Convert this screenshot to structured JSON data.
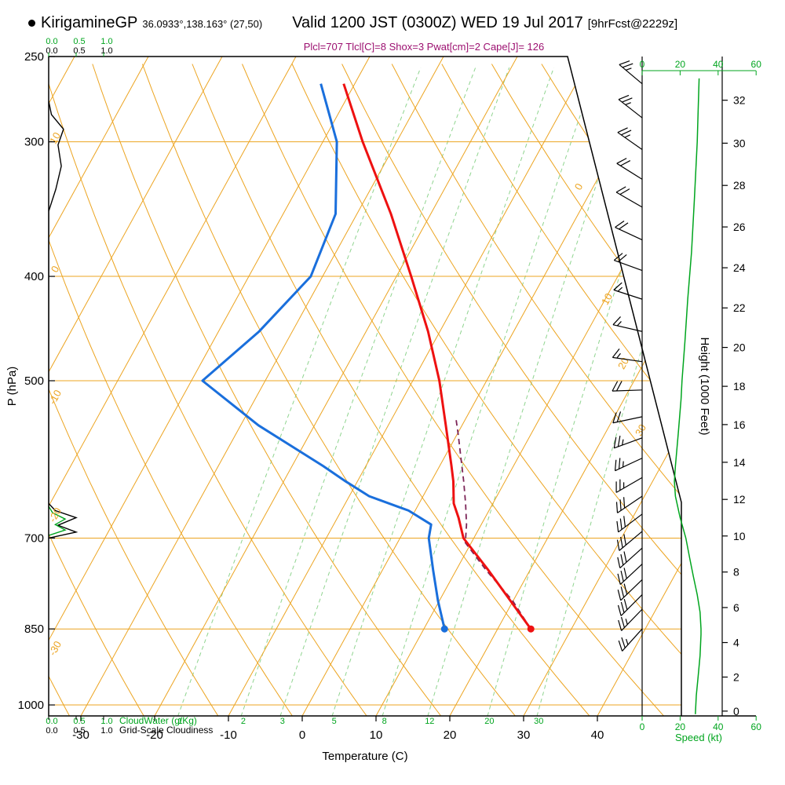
{
  "header": {
    "station": "KirigamineGP",
    "coords": "36.0933°,138.163° (27,50)",
    "valid": "Valid 1200 JST (0300Z) WED 19 Jul 2017",
    "fcst": "[9hrFcst@2229z]",
    "stats": "Plcl=707 Tlcl[C]=8 Shox=3 Pwat[cm]=2 Cape[J]= 126"
  },
  "axes": {
    "pressure_label": "P (hPa)",
    "pressure_ticks": [
      250,
      300,
      400,
      500,
      700,
      850,
      1000
    ],
    "temp_label": "Temperature (C)",
    "temp_ticks": [
      -30,
      -20,
      -10,
      0,
      10,
      20,
      30,
      40
    ],
    "height_label": "Height (1000 Feet)",
    "height_ticks": [
      0,
      2,
      4,
      6,
      8,
      10,
      12,
      14,
      16,
      18,
      20,
      22,
      24,
      26,
      28,
      30,
      32
    ],
    "speed_label": "Speed (kt)",
    "speed_ticks": [
      0,
      20,
      40,
      60
    ],
    "cloudwater_label": "CloudWater (g/Kg)",
    "cloudiness_label": "Grid-Scale Cloudiness",
    "cloud_scale_ticks": [
      "0.0",
      "0.5",
      "1.0"
    ]
  },
  "chart_data": {
    "type": "skewt-logp-sounding",
    "pressure_range_hpa": [
      250,
      1025
    ],
    "temp_axis_range_c": [
      -35,
      45
    ],
    "height_axis_range_kft": [
      0,
      33
    ],
    "speed_axis_range_kt": [
      0,
      60
    ],
    "isobars": [
      300,
      400,
      500,
      700,
      850,
      1000
    ],
    "mixing_ratio_lines": [
      1,
      2,
      3,
      5,
      8,
      12,
      20,
      30
    ],
    "adiabat_edge_labels": [
      10,
      0,
      -10,
      -20,
      -30
    ],
    "isotherm_edge_labels": [
      0,
      10,
      20,
      30
    ],
    "temperature_profile": [
      [
        850,
        24.5
      ],
      [
        800,
        19.6
      ],
      [
        750,
        14.4
      ],
      [
        700,
        8.6
      ],
      [
        670,
        6.4
      ],
      [
        650,
        4.7
      ],
      [
        620,
        3.0
      ],
      [
        600,
        1.6
      ],
      [
        550,
        -2.2
      ],
      [
        500,
        -6.4
      ],
      [
        450,
        -11.6
      ],
      [
        400,
        -18.0
      ],
      [
        350,
        -25.4
      ],
      [
        300,
        -34.6
      ],
      [
        265,
        -41.5
      ]
    ],
    "dewpoint_profile": [
      [
        850,
        12.8
      ],
      [
        800,
        9.8
      ],
      [
        750,
        6.9
      ],
      [
        700,
        3.9
      ],
      [
        680,
        3.2
      ],
      [
        660,
        -0.9
      ],
      [
        640,
        -7.3
      ],
      [
        620,
        -11.6
      ],
      [
        600,
        -15.8
      ],
      [
        550,
        -27.6
      ],
      [
        500,
        -38.5
      ],
      [
        450,
        -34.5
      ],
      [
        400,
        -31.6
      ],
      [
        350,
        -32.9
      ],
      [
        300,
        -38.1
      ],
      [
        265,
        -44.6
      ]
    ],
    "parcel_profile": [
      [
        850,
        24.5
      ],
      [
        800,
        19.9
      ],
      [
        750,
        14.1
      ],
      [
        707,
        9.2
      ],
      [
        680,
        8.0
      ],
      [
        650,
        6.3
      ],
      [
        620,
        4.4
      ],
      [
        590,
        2.3
      ],
      [
        560,
        0.1
      ],
      [
        540,
        -1.5
      ]
    ],
    "wind_barbs": [
      {
        "p": 265,
        "spd": 25,
        "dir": 310
      },
      {
        "p": 285,
        "spd": 25,
        "dir": 308
      },
      {
        "p": 305,
        "spd": 25,
        "dir": 305
      },
      {
        "p": 325,
        "spd": 22,
        "dir": 302
      },
      {
        "p": 345,
        "spd": 22,
        "dir": 300
      },
      {
        "p": 370,
        "spd": 20,
        "dir": 295
      },
      {
        "p": 395,
        "spd": 20,
        "dir": 290
      },
      {
        "p": 420,
        "spd": 18,
        "dir": 288
      },
      {
        "p": 450,
        "spd": 18,
        "dir": 283
      },
      {
        "p": 480,
        "spd": 18,
        "dir": 278
      },
      {
        "p": 510,
        "spd": 20,
        "dir": 268
      },
      {
        "p": 540,
        "spd": 22,
        "dir": 258
      },
      {
        "p": 565,
        "spd": 25,
        "dir": 250
      },
      {
        "p": 590,
        "spd": 27,
        "dir": 245
      },
      {
        "p": 615,
        "spd": 28,
        "dir": 240
      },
      {
        "p": 640,
        "spd": 30,
        "dir": 236
      },
      {
        "p": 665,
        "spd": 30,
        "dir": 233
      },
      {
        "p": 690,
        "spd": 30,
        "dir": 230
      },
      {
        "p": 715,
        "spd": 30,
        "dir": 228
      },
      {
        "p": 740,
        "spd": 30,
        "dir": 227
      },
      {
        "p": 765,
        "spd": 30,
        "dir": 226
      },
      {
        "p": 790,
        "spd": 30,
        "dir": 225
      },
      {
        "p": 815,
        "spd": 28,
        "dir": 224
      },
      {
        "p": 850,
        "spd": 28,
        "dir": 222
      }
    ],
    "speed_profile": [
      [
        1020,
        28
      ],
      [
        980,
        28.5
      ],
      [
        940,
        29.5
      ],
      [
        900,
        30.5
      ],
      [
        860,
        31
      ],
      [
        850,
        31
      ],
      [
        820,
        30.5
      ],
      [
        790,
        29
      ],
      [
        760,
        27
      ],
      [
        730,
        25
      ],
      [
        700,
        23
      ],
      [
        670,
        20
      ],
      [
        640,
        17.5
      ],
      [
        620,
        17
      ],
      [
        600,
        17.5
      ],
      [
        560,
        19
      ],
      [
        520,
        20.5
      ],
      [
        500,
        21
      ],
      [
        460,
        22.5
      ],
      [
        420,
        24
      ],
      [
        380,
        26
      ],
      [
        340,
        27.5
      ],
      [
        300,
        29
      ],
      [
        280,
        29.5
      ],
      [
        262,
        30
      ]
    ],
    "cloudiness_profile": [
      [
        275,
        0
      ],
      [
        283,
        0.05
      ],
      [
        292,
        0.27
      ],
      [
        302,
        0.17
      ],
      [
        316,
        0.23
      ],
      [
        332,
        0.13
      ],
      [
        348,
        0
      ],
      [
        650,
        0
      ],
      [
        660,
        0.12
      ],
      [
        670,
        0.5
      ],
      [
        681,
        0.17
      ],
      [
        691,
        0.5
      ],
      [
        700,
        0
      ]
    ],
    "cloud_water_profile": [
      [
        654,
        0
      ],
      [
        663,
        0.07
      ],
      [
        672,
        0.3
      ],
      [
        680,
        0.12
      ],
      [
        688,
        0.3
      ],
      [
        696,
        0
      ]
    ],
    "colors": {
      "grid": "#eca420",
      "mixing": "#8fd48f",
      "green": "#00a51e",
      "temperature": "#ee1111",
      "dewpoint": "#1a6fdc",
      "parcel": "#7c2457",
      "stats": "#9c1070",
      "black": "#000000"
    }
  }
}
